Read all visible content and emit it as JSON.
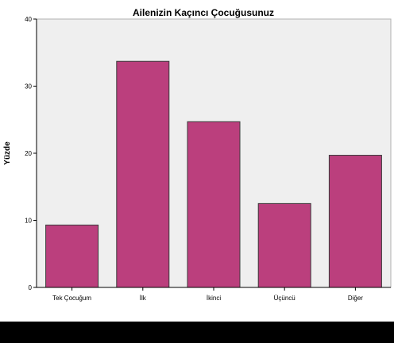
{
  "chart_data": {
    "type": "bar",
    "title": "Ailenizin Kaçıncı Çocuğusunuz",
    "xlabel": "",
    "ylabel": "Yüzde",
    "categories": [
      "Tek Çocuğum",
      "İlk",
      "İkinci",
      "Üçüncü",
      "Diğer"
    ],
    "values": [
      9.3,
      33.7,
      24.7,
      12.5,
      19.7
    ],
    "ylim": [
      0,
      40
    ],
    "yticks": [
      0,
      10,
      20,
      30,
      40
    ],
    "grid": false,
    "colors": {
      "bar_fill": "#bb3f7d",
      "bar_stroke": "#3a3a3a",
      "plot_bg": "#efefef",
      "page_bg": "#ffffff",
      "bottom_bar": "#000000"
    }
  }
}
